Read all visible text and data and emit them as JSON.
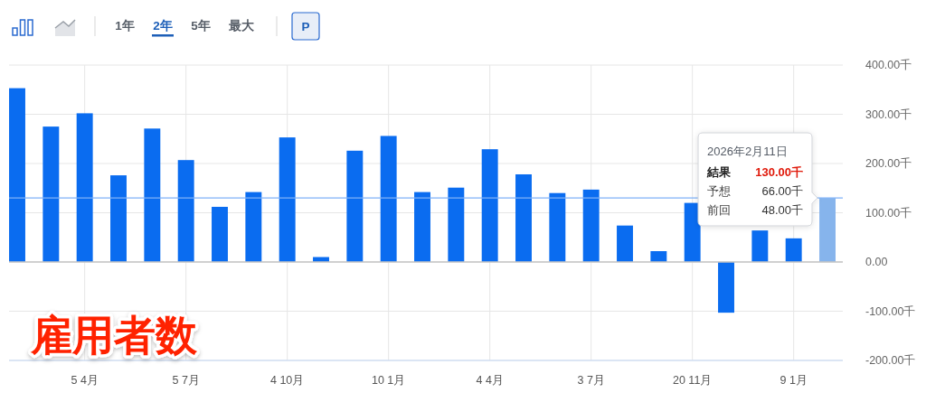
{
  "chart_data": {
    "type": "bar",
    "title": "雇用者数",
    "categories": [
      null,
      null,
      "5 4月",
      null,
      null,
      "5 7月",
      null,
      null,
      "4 10月",
      null,
      null,
      "10 1月",
      null,
      null,
      "4 4月",
      null,
      null,
      "3 7月",
      null,
      null,
      "20 11月",
      null,
      null,
      "9 1月",
      null
    ],
    "values": [
      353,
      275,
      302,
      176,
      271,
      207,
      112,
      142,
      253,
      10,
      226,
      256,
      142,
      151,
      229,
      178,
      140,
      147,
      74,
      22,
      120,
      -103,
      64,
      48,
      130
    ],
    "colors": [
      "#0a6cf0",
      "#0a6cf0",
      "#0a6cf0",
      "#0a6cf0",
      "#0a6cf0",
      "#0a6cf0",
      "#0a6cf0",
      "#0a6cf0",
      "#0a6cf0",
      "#0a6cf0",
      "#0a6cf0",
      "#0a6cf0",
      "#0a6cf0",
      "#0a6cf0",
      "#0a6cf0",
      "#0a6cf0",
      "#0a6cf0",
      "#0a6cf0",
      "#0a6cf0",
      "#0a6cf0",
      "#0a6cf0",
      "#0a6cf0",
      "#0a6cf0",
      "#0a6cf0",
      "#86b4ec"
    ],
    "ylim": [
      -200,
      400
    ],
    "yticks": [
      {
        "value": -200,
        "label": "-200.00千"
      },
      {
        "value": -100,
        "label": "-100.00千"
      },
      {
        "value": 0,
        "label": "0.00"
      },
      {
        "value": 100,
        "label": "100.00千"
      },
      {
        "value": 200,
        "label": "200.00千"
      },
      {
        "value": 300,
        "label": "300.00千"
      },
      {
        "value": 400,
        "label": "400.00千"
      }
    ],
    "grid": true,
    "ref_lines": [
      {
        "axis": "y",
        "value": 130,
        "color": "#7fb2f7"
      }
    ],
    "annotations": [
      "1年",
      "2年",
      "5年",
      "最大",
      "P",
      "2026年2月11日",
      "結果",
      "130.00千",
      "予想",
      "66.00千",
      "前回",
      "48.00千"
    ]
  }
}
